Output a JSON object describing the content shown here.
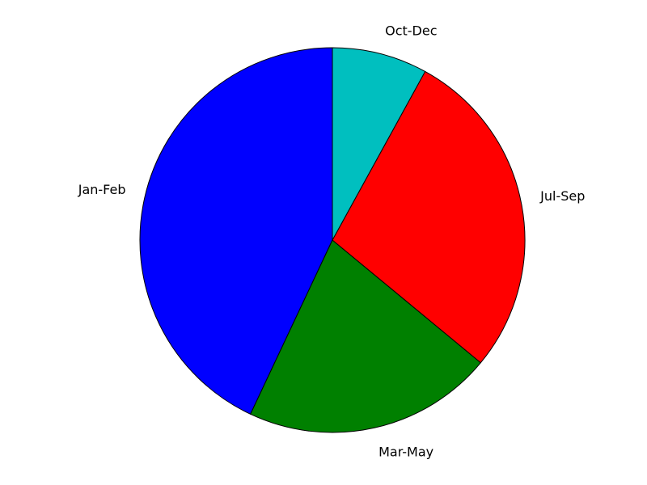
{
  "chart_data": {
    "type": "pie",
    "title": "",
    "start_angle_deg": 90,
    "direction": "counterclockwise",
    "slices": [
      {
        "label": "Jan-Feb",
        "value": 43,
        "color": "#0000ff"
      },
      {
        "label": "Mar-May",
        "value": 21,
        "color": "#008000"
      },
      {
        "label": "Jul-Sep",
        "value": 28,
        "color": "#ff0000"
      },
      {
        "label": "Oct-Dec",
        "value": 8,
        "color": "#00bfbf"
      }
    ]
  }
}
